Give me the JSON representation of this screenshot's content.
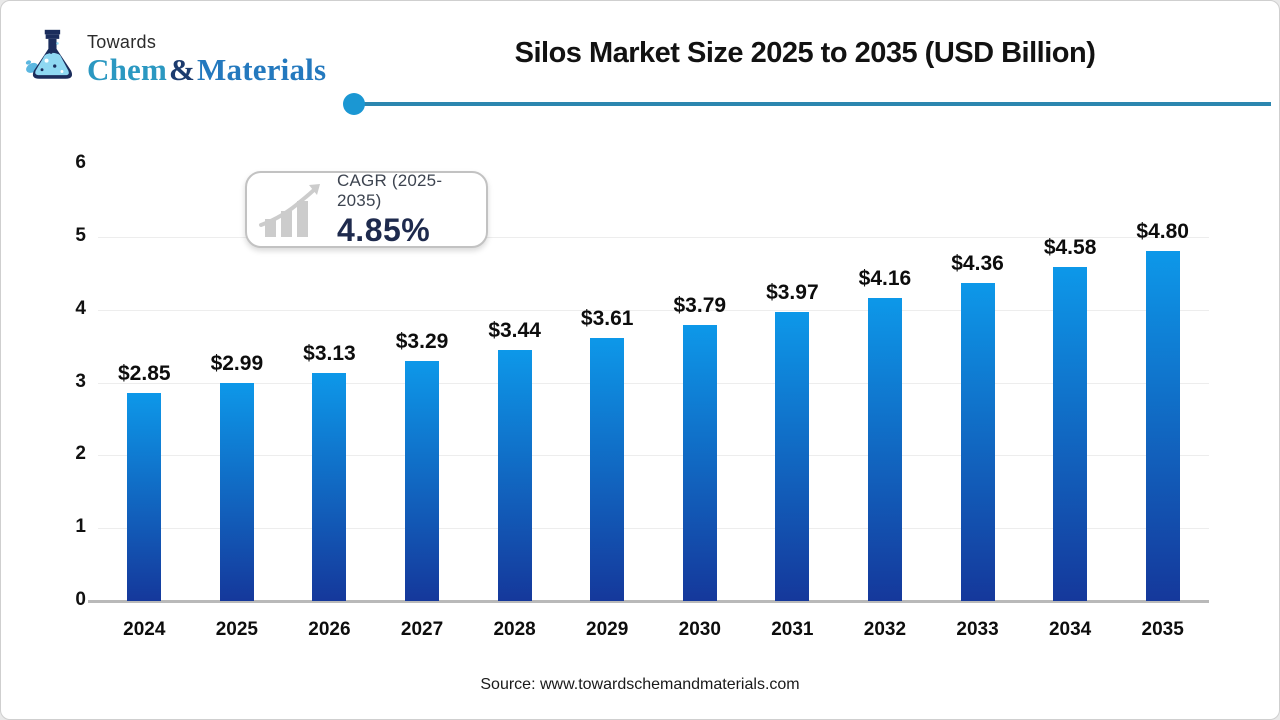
{
  "logo": {
    "towards": "Towards",
    "brand_chem": "Chem",
    "brand_amp": "&",
    "brand_materials": "Materials"
  },
  "header": {
    "title": "Silos Market Size 2025 to 2035 (USD Billion)"
  },
  "cagr_badge": {
    "label": "CAGR (2025-2035)",
    "value": "4.85%"
  },
  "footer": {
    "source": "Source: www.towardschemandmaterials.com"
  },
  "colors": {
    "bar_gradient_top": "#0d98e9",
    "bar_gradient_bottom": "#15389b",
    "divider_line": "#2b86af",
    "divider_dot": "#1b97d3",
    "brand_chem": "#2b98c1",
    "brand_amp": "#1c3b6e",
    "brand_materials": "#2479be",
    "cagr_value_text": "#1e2a4d"
  },
  "chart_data": {
    "type": "bar",
    "title": "Silos Market Size 2025 to 2035 (USD Billion)",
    "categories": [
      "2024",
      "2025",
      "2026",
      "2027",
      "2028",
      "2029",
      "2030",
      "2031",
      "2032",
      "2033",
      "2034",
      "2035"
    ],
    "values": [
      2.85,
      2.99,
      3.13,
      3.29,
      3.44,
      3.61,
      3.79,
      3.97,
      4.16,
      4.36,
      4.58,
      4.8
    ],
    "value_labels": [
      "$2.85",
      "$2.99",
      "$3.13",
      "$3.29",
      "$3.44",
      "$3.61",
      "$3.79",
      "$3.97",
      "$4.16",
      "$4.36",
      "$4.58",
      "$4.80"
    ],
    "xlabel": "",
    "ylabel": "",
    "ylim": [
      0,
      6
    ],
    "yticks": [
      0,
      1,
      2,
      3,
      4,
      5,
      6
    ],
    "gridline_ticks": [
      1,
      2,
      3,
      4,
      5
    ],
    "grid": true,
    "legend": "none",
    "bar_color_top": "#0d98e9",
    "bar_color_bottom": "#15389b"
  }
}
